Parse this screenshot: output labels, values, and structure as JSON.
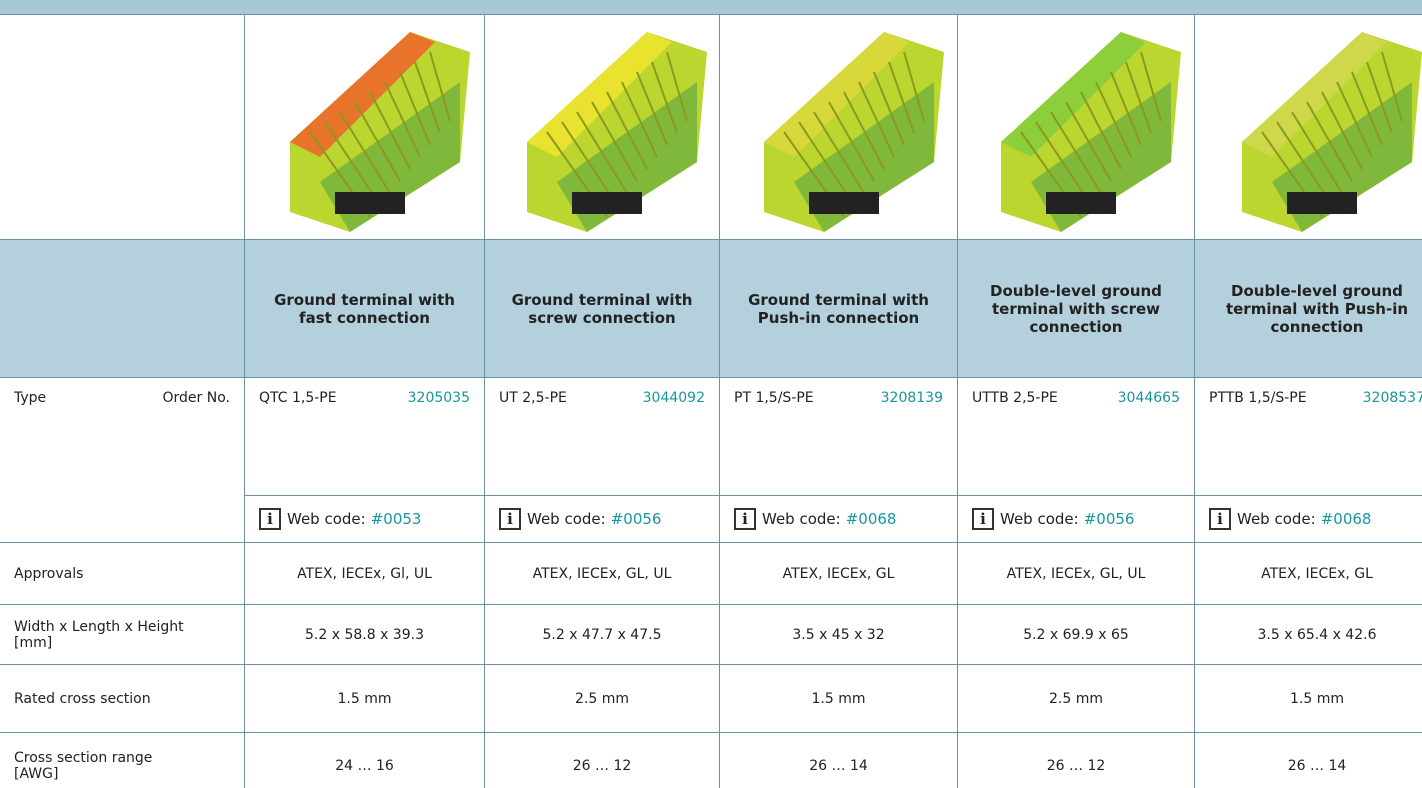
{
  "table": {
    "row_labels": {
      "type": "Type",
      "order_no": "Order No.",
      "approvals": "Approvals",
      "dimensions": "Width x Length x Height [mm]",
      "rated_cross_section": "Rated cross section",
      "cross_section_range": "Cross section range [AWG]"
    },
    "info_icon": "i",
    "web_code_label": "Web code:",
    "products": [
      {
        "name": "Ground terminal with fast connection",
        "type": "QTC 1,5-PE",
        "order_no": "3205035",
        "web_code": "#0053",
        "approvals": "ATEX, IECEx, Gl, UL",
        "dimensions": "5.2 x 58.8 x 39.3",
        "rated_cross_section": "1.5 mm",
        "cross_section_range": "24 … 16"
      },
      {
        "name": "Ground terminal with screw connection",
        "type": "UT 2,5-PE",
        "order_no": "3044092",
        "web_code": "#0056",
        "approvals": "ATEX, IECEx, GL, UL",
        "dimensions": "5.2 x 47.7 x 47.5",
        "rated_cross_section": "2.5 mm",
        "cross_section_range": "26 … 12"
      },
      {
        "name": "Ground terminal with Push-in connection",
        "type": "PT 1,5/S-PE",
        "order_no": "3208139",
        "web_code": "#0068",
        "approvals": "ATEX, IECEx, GL",
        "dimensions": "3.5 x 45 x 32",
        "rated_cross_section": "1.5 mm",
        "cross_section_range": "26 … 14"
      },
      {
        "name": "Double-level ground terminal with screw connection",
        "type": "UTTB 2,5-PE",
        "order_no": "3044665",
        "web_code": "#0056",
        "approvals": "ATEX, IECEx, GL, UL",
        "dimensions": "5.2 x 69.9 x 65",
        "rated_cross_section": "2.5 mm",
        "cross_section_range": "26 … 12"
      },
      {
        "name": "Double-level ground terminal with Push-in connection",
        "type": "PTTB 1,5/S-PE",
        "order_no": "3208537",
        "web_code": "#0068",
        "approvals": "ATEX, IECEx, GL",
        "dimensions": "3.5 x 65.4 x 42.6",
        "rated_cross_section": "1.5 mm",
        "cross_section_range": "26 … 14"
      }
    ]
  }
}
